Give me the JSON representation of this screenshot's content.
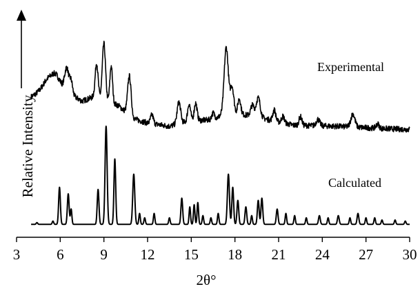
{
  "chart_data": {
    "type": "line",
    "title": "",
    "xlabel": "2θ°",
    "ylabel": "Relative Intensity",
    "xlim": [
      3,
      30
    ],
    "ylim": [
      0,
      100
    ],
    "x_ticks": [
      3,
      6,
      9,
      12,
      15,
      18,
      21,
      24,
      27,
      30
    ],
    "x_tick_labels": [
      "3",
      "6",
      "9",
      "12",
      "15",
      "18",
      "21",
      "24",
      "27",
      "30"
    ],
    "grid": false,
    "legend": "none",
    "y_ticks_shown": false,
    "colors": {
      "line": "#000000",
      "background": "#ffffff"
    },
    "series": [
      {
        "name": "Experimental",
        "description": "measured powder pattern, offset upward",
        "baseline": [
          [
            4.0,
            60.0
          ],
          [
            5.5,
            66.0
          ],
          [
            6.0,
            66.0
          ],
          [
            6.5,
            62.0
          ],
          [
            7.5,
            58.0
          ],
          [
            8.3,
            60.0
          ],
          [
            10.0,
            56.0
          ],
          [
            11.0,
            50.0
          ],
          [
            12.0,
            48.0
          ],
          [
            13.5,
            46.5
          ],
          [
            15.0,
            49.0
          ],
          [
            16.5,
            49.5
          ],
          [
            17.5,
            53.0
          ],
          [
            18.5,
            52.0
          ],
          [
            20.0,
            50.0
          ],
          [
            22.0,
            47.0
          ],
          [
            25.0,
            46.5
          ],
          [
            28.0,
            45.5
          ],
          [
            30.0,
            45.0
          ]
        ],
        "peaks": [
          [
            5.2,
            4,
            0.35
          ],
          [
            5.7,
            3,
            0.2
          ],
          [
            6.45,
            11,
            0.14
          ],
          [
            6.75,
            6,
            0.1
          ],
          [
            8.5,
            16,
            0.1
          ],
          [
            9.0,
            26,
            0.11
          ],
          [
            9.5,
            17,
            0.09
          ],
          [
            10.75,
            18,
            0.12
          ],
          [
            12.3,
            4,
            0.1
          ],
          [
            14.15,
            10,
            0.12
          ],
          [
            14.85,
            8,
            0.1
          ],
          [
            15.3,
            8,
            0.1
          ],
          [
            16.5,
            3,
            0.1
          ],
          [
            17.4,
            30,
            0.14
          ],
          [
            17.8,
            12,
            0.12
          ],
          [
            18.3,
            7,
            0.1
          ],
          [
            19.2,
            5,
            0.12
          ],
          [
            19.6,
            9,
            0.14
          ],
          [
            20.7,
            5,
            0.1
          ],
          [
            21.3,
            3,
            0.1
          ],
          [
            22.5,
            4,
            0.1
          ],
          [
            23.7,
            3,
            0.12
          ],
          [
            26.1,
            6,
            0.14
          ],
          [
            27.8,
            2,
            0.1
          ]
        ]
      },
      {
        "name": "Calculated",
        "description": "simulated pattern from the crystal structure",
        "baseline": [
          [
            4.0,
            1.5
          ],
          [
            30.0,
            1.5
          ]
        ],
        "peaks": [
          [
            4.4,
            0.8,
            0.05
          ],
          [
            5.5,
            1.5,
            0.05
          ],
          [
            5.95,
            17,
            0.06
          ],
          [
            6.55,
            14,
            0.06
          ],
          [
            6.75,
            7,
            0.05
          ],
          [
            8.6,
            16,
            0.06
          ],
          [
            9.15,
            45,
            0.07
          ],
          [
            9.75,
            30,
            0.06
          ],
          [
            11.05,
            23,
            0.07
          ],
          [
            11.45,
            5,
            0.05
          ],
          [
            11.8,
            3,
            0.05
          ],
          [
            12.45,
            5,
            0.05
          ],
          [
            13.5,
            3,
            0.05
          ],
          [
            14.35,
            12,
            0.06
          ],
          [
            14.9,
            8,
            0.05
          ],
          [
            15.2,
            9,
            0.05
          ],
          [
            15.45,
            10,
            0.05
          ],
          [
            15.8,
            4,
            0.05
          ],
          [
            16.35,
            3,
            0.05
          ],
          [
            16.85,
            5,
            0.05
          ],
          [
            17.55,
            23,
            0.07
          ],
          [
            17.85,
            17,
            0.06
          ],
          [
            18.2,
            11,
            0.06
          ],
          [
            18.75,
            8,
            0.06
          ],
          [
            19.15,
            4,
            0.05
          ],
          [
            19.6,
            11,
            0.06
          ],
          [
            19.85,
            12,
            0.06
          ],
          [
            20.9,
            7,
            0.06
          ],
          [
            21.5,
            5,
            0.05
          ],
          [
            22.1,
            4,
            0.05
          ],
          [
            22.9,
            3,
            0.05
          ],
          [
            23.8,
            4,
            0.06
          ],
          [
            24.4,
            3,
            0.05
          ],
          [
            25.1,
            4,
            0.06
          ],
          [
            25.9,
            3,
            0.05
          ],
          [
            26.45,
            5,
            0.06
          ],
          [
            27.0,
            3,
            0.05
          ],
          [
            27.6,
            3,
            0.05
          ],
          [
            28.1,
            2,
            0.05
          ],
          [
            29.0,
            2,
            0.05
          ],
          [
            29.7,
            1.5,
            0.05
          ]
        ]
      }
    ]
  }
}
